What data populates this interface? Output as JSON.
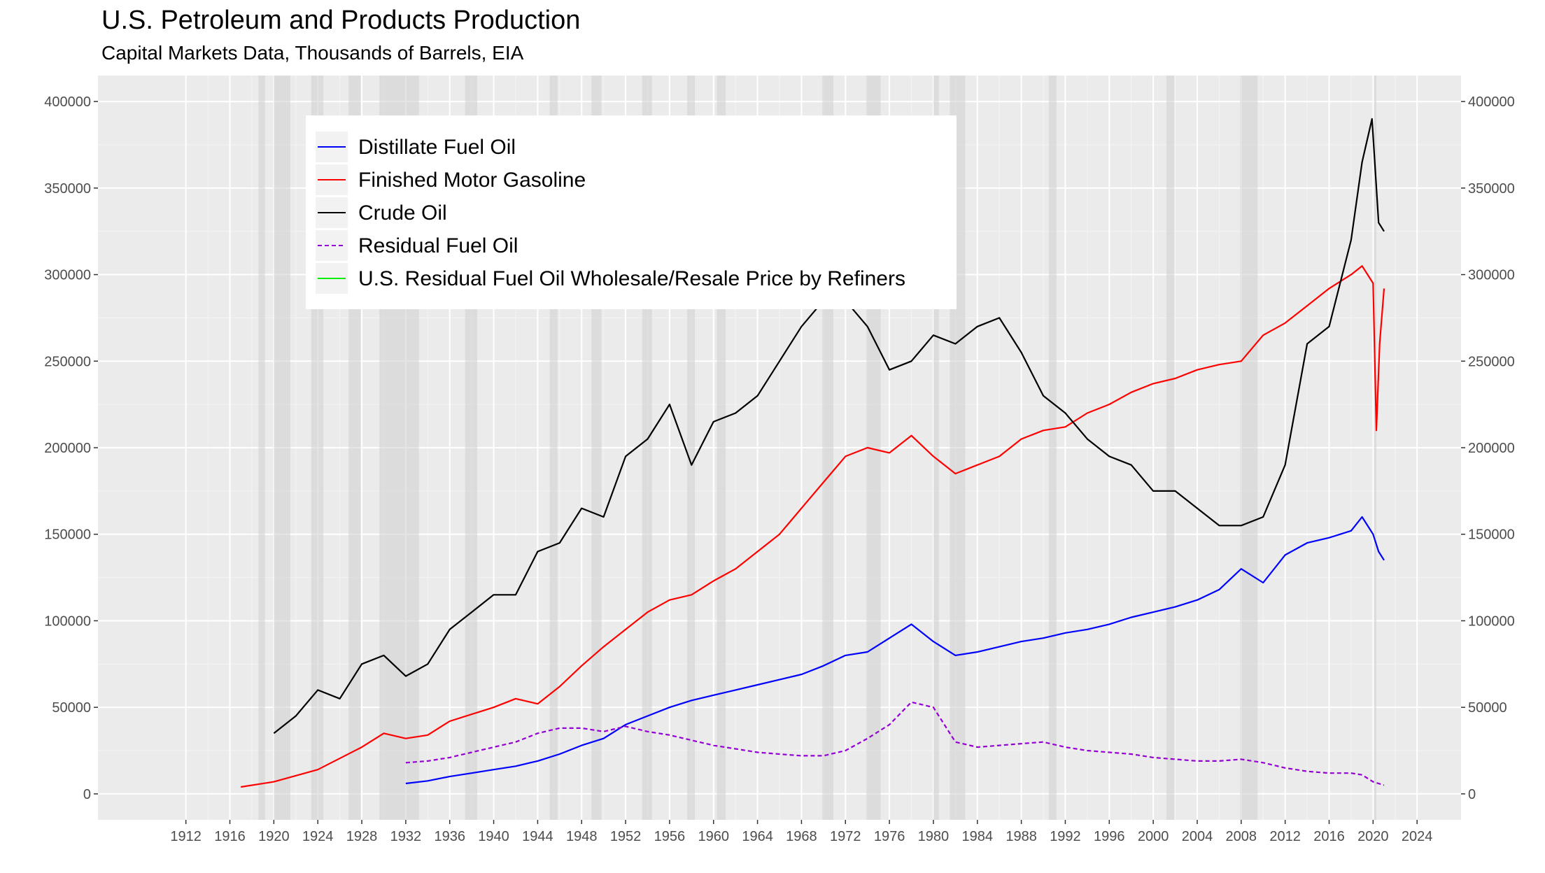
{
  "chart_data": {
    "type": "line",
    "title": "U.S. Petroleum and Products Production",
    "subtitle": "Capital Markets Data, Thousands of Barrels, EIA",
    "xlabel": "",
    "ylabel": "",
    "xlim": [
      1904,
      2028
    ],
    "ylim": [
      -15000,
      415000
    ],
    "x_ticks": [
      1912,
      1916,
      1920,
      1924,
      1928,
      1932,
      1936,
      1940,
      1944,
      1948,
      1952,
      1956,
      1960,
      1964,
      1968,
      1972,
      1976,
      1980,
      1984,
      1988,
      1992,
      1996,
      2000,
      2004,
      2008,
      2012,
      2016,
      2020,
      2024
    ],
    "y_ticks": [
      0,
      50000,
      100000,
      150000,
      200000,
      250000,
      300000,
      350000,
      400000
    ],
    "grid": true,
    "legend_position": "top-left inside",
    "recession_shading": [
      [
        1918.6,
        1919.2
      ],
      [
        1920.0,
        1921.5
      ],
      [
        1923.4,
        1924.5
      ],
      [
        1926.8,
        1927.9
      ],
      [
        1929.6,
        1933.2
      ],
      [
        1937.4,
        1938.5
      ],
      [
        1945.1,
        1945.8
      ],
      [
        1948.9,
        1949.8
      ],
      [
        1953.5,
        1954.4
      ],
      [
        1957.6,
        1958.3
      ],
      [
        1960.3,
        1961.1
      ],
      [
        1969.9,
        1970.9
      ],
      [
        1973.9,
        1975.2
      ],
      [
        1980.0,
        1980.5
      ],
      [
        1981.5,
        1982.9
      ],
      [
        1990.5,
        1991.2
      ],
      [
        2001.2,
        2001.9
      ],
      [
        2007.9,
        2009.5
      ],
      [
        2020.1,
        2020.3
      ]
    ],
    "series": [
      {
        "name": "Distillate Fuel Oil",
        "color": "#0000ff",
        "dash": "solid",
        "x": [
          1932,
          1934,
          1936,
          1938,
          1940,
          1942,
          1944,
          1946,
          1948,
          1950,
          1952,
          1954,
          1956,
          1958,
          1960,
          1962,
          1964,
          1966,
          1968,
          1970,
          1972,
          1974,
          1976,
          1978,
          1980,
          1982,
          1984,
          1986,
          1988,
          1990,
          1992,
          1994,
          1996,
          1998,
          2000,
          2002,
          2004,
          2006,
          2008,
          2010,
          2012,
          2014,
          2016,
          2018,
          2019,
          2020,
          2020.5,
          2021
        ],
        "y": [
          6000,
          7500,
          10000,
          12000,
          14000,
          16000,
          19000,
          23000,
          28000,
          32000,
          40000,
          45000,
          50000,
          54000,
          57000,
          60000,
          63000,
          66000,
          69000,
          74000,
          80000,
          82000,
          90000,
          98000,
          88000,
          80000,
          82000,
          85000,
          88000,
          90000,
          93000,
          95000,
          98000,
          102000,
          105000,
          108000,
          112000,
          118000,
          130000,
          122000,
          138000,
          145000,
          148000,
          152000,
          160000,
          150000,
          140000,
          135000
        ]
      },
      {
        "name": "Finished Motor Gasoline",
        "color": "#ff0000",
        "dash": "solid",
        "x": [
          1917,
          1920,
          1924,
          1928,
          1930,
          1932,
          1934,
          1936,
          1938,
          1940,
          1942,
          1944,
          1946,
          1948,
          1950,
          1952,
          1954,
          1956,
          1958,
          1960,
          1962,
          1964,
          1966,
          1968,
          1970,
          1972,
          1974,
          1976,
          1978,
          1980,
          1982,
          1984,
          1986,
          1988,
          1990,
          1992,
          1994,
          1996,
          1998,
          2000,
          2002,
          2004,
          2006,
          2008,
          2010,
          2012,
          2014,
          2016,
          2018,
          2019,
          2020,
          2020.3,
          2020.6,
          2021
        ],
        "y": [
          4000,
          7000,
          14000,
          27000,
          35000,
          32000,
          34000,
          42000,
          46000,
          50000,
          55000,
          52000,
          62000,
          74000,
          85000,
          95000,
          105000,
          112000,
          115000,
          123000,
          130000,
          140000,
          150000,
          165000,
          180000,
          195000,
          200000,
          197000,
          207000,
          195000,
          185000,
          190000,
          195000,
          205000,
          210000,
          212000,
          220000,
          225000,
          232000,
          237000,
          240000,
          245000,
          248000,
          250000,
          265000,
          272000,
          282000,
          292000,
          300000,
          305000,
          295000,
          210000,
          260000,
          292000
        ]
      },
      {
        "name": "Crude Oil",
        "color": "#000000",
        "dash": "solid",
        "x": [
          1920,
          1922,
          1924,
          1926,
          1928,
          1930,
          1932,
          1934,
          1936,
          1938,
          1940,
          1942,
          1944,
          1946,
          1948,
          1950,
          1952,
          1954,
          1956,
          1958,
          1960,
          1962,
          1964,
          1966,
          1968,
          1970,
          1972,
          1974,
          1976,
          1978,
          1980,
          1982,
          1984,
          1986,
          1988,
          1990,
          1992,
          1994,
          1996,
          1998,
          2000,
          2002,
          2004,
          2006,
          2008,
          2010,
          2012,
          2014,
          2016,
          2018,
          2019,
          2019.9,
          2020.5,
          2021
        ],
        "y": [
          35000,
          45000,
          60000,
          55000,
          75000,
          80000,
          68000,
          75000,
          95000,
          105000,
          115000,
          115000,
          140000,
          145000,
          165000,
          160000,
          195000,
          205000,
          225000,
          190000,
          215000,
          220000,
          230000,
          250000,
          270000,
          285000,
          285000,
          270000,
          245000,
          250000,
          265000,
          260000,
          270000,
          275000,
          255000,
          230000,
          220000,
          205000,
          195000,
          190000,
          175000,
          175000,
          165000,
          155000,
          155000,
          160000,
          190000,
          260000,
          270000,
          320000,
          365000,
          390000,
          330000,
          325000
        ]
      },
      {
        "name": "Residual Fuel Oil",
        "color": "#9400d3",
        "dash": "dashed",
        "x": [
          1932,
          1934,
          1936,
          1938,
          1940,
          1942,
          1944,
          1946,
          1948,
          1950,
          1952,
          1954,
          1956,
          1958,
          1960,
          1962,
          1964,
          1966,
          1968,
          1970,
          1972,
          1974,
          1976,
          1978,
          1980,
          1982,
          1984,
          1986,
          1988,
          1990,
          1992,
          1994,
          1996,
          1998,
          2000,
          2002,
          2004,
          2006,
          2008,
          2010,
          2012,
          2014,
          2016,
          2018,
          2019,
          2020,
          2021
        ],
        "y": [
          18000,
          19000,
          21000,
          24000,
          27000,
          30000,
          35000,
          38000,
          38000,
          36000,
          39000,
          36000,
          34000,
          31000,
          28000,
          26000,
          24000,
          23000,
          22000,
          22000,
          25000,
          32000,
          40000,
          53000,
          50000,
          30000,
          27000,
          28000,
          29000,
          30000,
          27000,
          25000,
          24000,
          23000,
          21000,
          20000,
          19000,
          19000,
          20000,
          18000,
          15000,
          13000,
          12000,
          12000,
          11000,
          7000,
          5000
        ]
      },
      {
        "name": "U.S. Residual Fuel Oil Wholesale/Resale Price by Refiners",
        "color": "#00ee00",
        "dash": "solid",
        "x": [],
        "y": []
      }
    ]
  }
}
